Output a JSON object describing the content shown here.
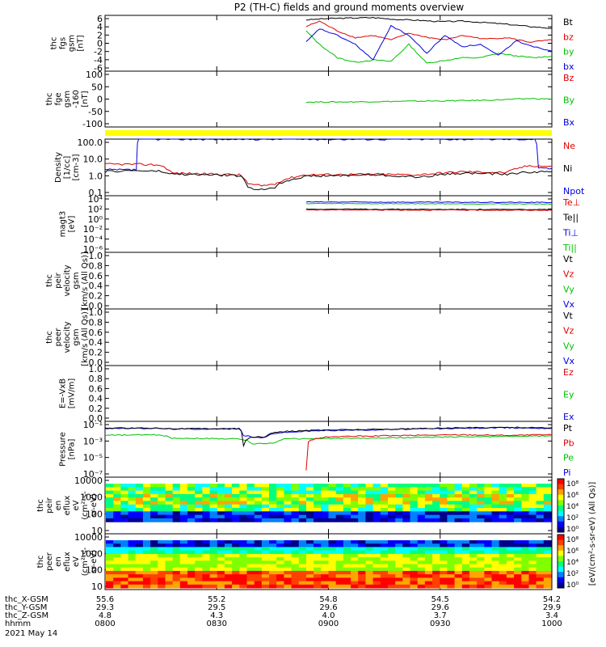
{
  "title": "P2 (TH-C) fields and ground moments overview",
  "colors": {
    "black": "#000000",
    "red": "#e00000",
    "green": "#00c000",
    "blue": "#0000e0",
    "yellow": "#ffff00",
    "frame": "#000000"
  },
  "chart_data": {
    "type": "line",
    "time_range": [
      "08:00",
      "10:00"
    ],
    "panels": [
      {
        "id": "fgs",
        "ylabel_lines": [
          "thc",
          "fgs",
          "gsm",
          "[nT]"
        ],
        "yticks": [
          "6",
          "4",
          "2",
          "0",
          "-2",
          "-4",
          "-6"
        ],
        "ylim": [
          -6,
          6.5
        ],
        "legend": [
          {
            "label": "Bt",
            "color": "#000000"
          },
          {
            "label": "bz",
            "color": "#e00000"
          },
          {
            "label": "by",
            "color": "#00c000"
          },
          {
            "label": "bx",
            "color": "#0000e0"
          }
        ],
        "series": [
          {
            "name": "Bt",
            "color": "#000000",
            "x": [
              0.45,
              0.5,
              0.55,
              0.6,
              0.65,
              0.7,
              0.75,
              0.8,
              0.85,
              0.9,
              0.95,
              1.0
            ],
            "y": [
              5.5,
              5.8,
              5.9,
              6.0,
              5.6,
              5.4,
              5.1,
              5.2,
              4.9,
              4.5,
              4.0,
              3.6
            ]
          },
          {
            "name": "bz",
            "color": "#e00000",
            "x": [
              0.45,
              0.48,
              0.52,
              0.56,
              0.6,
              0.64,
              0.68,
              0.72,
              0.76,
              0.8,
              0.85,
              0.9,
              0.95,
              1.0
            ],
            "y": [
              4.0,
              5.2,
              3.0,
              1.5,
              2.0,
              1.0,
              2.5,
              1.6,
              1.0,
              2.0,
              1.2,
              1.5,
              0.5,
              1.0
            ]
          },
          {
            "name": "by",
            "color": "#00c000",
            "x": [
              0.45,
              0.48,
              0.52,
              0.56,
              0.6,
              0.64,
              0.68,
              0.72,
              0.76,
              0.8,
              0.84,
              0.88,
              0.92,
              0.96,
              1.0
            ],
            "y": [
              3.0,
              0.0,
              -3.0,
              -4.0,
              -3.5,
              -3.8,
              0.0,
              -4.2,
              -3.6,
              -3.0,
              -3.0,
              -2.0,
              -2.6,
              -3.0,
              -2.6
            ]
          },
          {
            "name": "bx",
            "color": "#0000e0",
            "x": [
              0.45,
              0.48,
              0.52,
              0.56,
              0.6,
              0.64,
              0.68,
              0.72,
              0.76,
              0.8,
              0.84,
              0.88,
              0.92,
              0.96,
              1.0
            ],
            "y": [
              0.5,
              3.5,
              2.0,
              0.0,
              -3.5,
              4.2,
              2.0,
              -2.0,
              2.0,
              -0.5,
              0.0,
              -2.5,
              0.8,
              -0.5,
              -1.5
            ]
          }
        ]
      },
      {
        "id": "fge",
        "ylabel_lines": [
          "thc",
          "fge",
          "gsm",
          "-160",
          "[nT]"
        ],
        "yticks": [
          "100",
          "50",
          "0",
          "-50",
          "-100"
        ],
        "ylim": [
          -130,
          110
        ],
        "legend": [
          {
            "label": "Bz",
            "color": "#e00000"
          },
          {
            "label": "By",
            "color": "#00c000"
          },
          {
            "label": "Bx",
            "color": "#0000e0"
          }
        ],
        "series": [
          {
            "name": "By",
            "color": "#00c000",
            "x": [
              0.45,
              0.55,
              0.65,
              0.75,
              0.85,
              0.9,
              0.95,
              1.0
            ],
            "y": [
              -23,
              -22,
              -20,
              -18,
              -15,
              -12,
              -8,
              -10
            ]
          }
        ]
      },
      {
        "id": "density",
        "ylabel_lines": [
          "Density",
          "[1/cc]",
          "[cm-3]"
        ],
        "yticks": [
          "100.0",
          "10.0",
          "1.0",
          "0.1"
        ],
        "log": true,
        "ylim": [
          0.03,
          300
        ],
        "legend": [
          {
            "label": "Ne",
            "color": "#e00000"
          },
          {
            "label": "Ni",
            "color": "#000000"
          },
          {
            "label": "Npot",
            "color": "#0000e0"
          }
        ],
        "series": [
          {
            "name": "Npot",
            "color": "#0000e0",
            "x": [
              0,
              0.07,
              0.075,
              0.08,
              0.96,
              0.962,
              0.97,
              1.0
            ],
            "y": [
              2.0,
              2.0,
              300,
              300,
              300,
              300,
              2.5,
              2.5
            ]
          },
          {
            "name": "Ne",
            "color": "#e00000",
            "x": [
              0,
              0.06,
              0.12,
              0.15,
              0.3,
              0.32,
              0.35,
              0.38,
              0.45,
              0.6,
              0.7,
              0.8,
              0.9,
              0.95,
              1.0
            ],
            "y": [
              5.0,
              5.0,
              4.5,
              1.2,
              0.9,
              0.2,
              0.15,
              0.2,
              0.9,
              1.0,
              0.9,
              1.5,
              1.3,
              4.0,
              3.5
            ]
          },
          {
            "name": "Ni",
            "color": "#000000",
            "x": [
              0,
              0.06,
              0.12,
              0.15,
              0.3,
              0.32,
              0.35,
              0.38,
              0.45,
              0.6,
              0.7,
              0.8,
              0.9,
              0.95,
              1.0
            ],
            "y": [
              1.5,
              1.8,
              1.6,
              1.0,
              0.8,
              0.1,
              0.08,
              0.12,
              0.7,
              0.9,
              0.6,
              1.2,
              1.0,
              1.4,
              1.5
            ]
          }
        ]
      },
      {
        "id": "temperature",
        "ylabel_lines": [
          "magt3",
          "[eV]"
        ],
        "yticks": [
          "10⁴",
          "10²",
          "10⁰",
          "10⁻²",
          "10⁻⁴",
          "10⁻⁶"
        ],
        "log": true,
        "ylim": [
          1e-07,
          10000.0
        ],
        "legend": [
          {
            "label": "Te⊥",
            "color": "#e00000"
          },
          {
            "label": "Te||",
            "color": "#000000"
          },
          {
            "label": "Ti⊥",
            "color": "#0000e0"
          },
          {
            "label": "Ti||",
            "color": "#00c000"
          }
        ],
        "series": [
          {
            "name": "Ti⊥",
            "color": "#0000e0",
            "x": [
              0.45,
              1.0
            ],
            "y": [
              600,
              500
            ]
          },
          {
            "name": "Ti||",
            "color": "#00c000",
            "x": [
              0.45,
              1.0
            ],
            "y": [
              300,
              250
            ]
          },
          {
            "name": "Te||",
            "color": "#000000",
            "x": [
              0.45,
              1.0
            ],
            "y": [
              25,
              20
            ]
          },
          {
            "name": "Te⊥",
            "color": "#e00000",
            "x": [
              0.45,
              1.0
            ],
            "y": [
              18,
              15
            ]
          }
        ]
      },
      {
        "id": "peir_velocity",
        "ylabel_lines": [
          "thc",
          "peir",
          "velocity",
          "gsm",
          "[km/s (All Qs)]"
        ],
        "yticks": [
          "1.0",
          "0.8",
          "0.6",
          "0.4",
          "0.2",
          "0.0"
        ],
        "ylim": [
          0,
          1
        ],
        "legend": [
          {
            "label": "Vt",
            "color": "#000000"
          },
          {
            "label": "Vz",
            "color": "#e00000"
          },
          {
            "label": "Vy",
            "color": "#00c000"
          },
          {
            "label": "Vx",
            "color": "#0000e0"
          }
        ],
        "series": []
      },
      {
        "id": "peer_velocity",
        "ylabel_lines": [
          "thc",
          "peer",
          "velocity",
          "gsm",
          "[km/s (All Qs)]"
        ],
        "yticks": [
          "1.0",
          "0.8",
          "0.6",
          "0.4",
          "0.2",
          "0.0"
        ],
        "ylim": [
          0,
          1
        ],
        "legend": [
          {
            "label": "Vt",
            "color": "#000000"
          },
          {
            "label": "Vz",
            "color": "#e00000"
          },
          {
            "label": "Vy",
            "color": "#00c000"
          },
          {
            "label": "Vx",
            "color": "#0000e0"
          }
        ],
        "series": []
      },
      {
        "id": "efield",
        "ylabel_lines": [
          "E=-VxB",
          "[mV/m]"
        ],
        "yticks": [
          "1.0",
          "0.8",
          "0.6",
          "0.4",
          "0.2",
          "0.0"
        ],
        "ylim": [
          0,
          1
        ],
        "legend": [
          {
            "label": "Ez",
            "color": "#e00000"
          },
          {
            "label": "Ey",
            "color": "#00c000"
          },
          {
            "label": "Ex",
            "color": "#0000e0"
          }
        ],
        "series": []
      },
      {
        "id": "pressure",
        "ylabel_lines": [
          "Pressure",
          "[nPa]"
        ],
        "yticks": [
          "10⁻¹",
          "10⁻³",
          "10⁻⁵",
          "10⁻⁷"
        ],
        "log": true,
        "ylim": [
          1e-08,
          1
        ],
        "legend": [
          {
            "label": "Pt",
            "color": "#000000"
          },
          {
            "label": "Pb",
            "color": "#e00000"
          },
          {
            "label": "Pe",
            "color": "#00c000"
          },
          {
            "label": "Pi",
            "color": "#0000e0"
          }
        ],
        "series": [
          {
            "name": "Pe",
            "color": "#00c000",
            "x": [
              0,
              0.12,
              0.15,
              0.3,
              0.33,
              0.38,
              0.4,
              0.6,
              0.8,
              1.0
            ],
            "y": [
              0.01,
              0.012,
              0.004,
              0.003,
              0.0006,
              0.0008,
              0.003,
              0.004,
              0.006,
              0.008
            ]
          },
          {
            "name": "Pb",
            "color": "#e00000",
            "x": [
              0.45,
              0.46,
              0.5,
              0.6,
              0.7,
              0.8,
              0.9,
              1.0
            ],
            "y": [
              1e-07,
              0.002,
              0.006,
              0.008,
              0.01,
              0.012,
              0.01,
              0.012
            ]
          },
          {
            "name": "Pi",
            "color": "#0000e0",
            "x": [
              0,
              0.12,
              0.15,
              0.3,
              0.31,
              0.33,
              0.36,
              0.38,
              0.5,
              0.6,
              0.7,
              0.8,
              0.9,
              1.0
            ],
            "y": [
              0.1,
              0.1,
              0.08,
              0.08,
              0.01,
              0.005,
              0.005,
              0.02,
              0.05,
              0.06,
              0.08,
              0.1,
              0.12,
              0.1
            ]
          },
          {
            "name": "Pt",
            "color": "#000000",
            "x": [
              0,
              0.12,
              0.15,
              0.3,
              0.31,
              0.33,
              0.36,
              0.38,
              0.5,
              0.6,
              0.7,
              0.8,
              0.9,
              1.0
            ],
            "y": [
              0.11,
              0.11,
              0.09,
              0.09,
              0.0003,
              0.006,
              0.006,
              0.03,
              0.06,
              0.07,
              0.09,
              0.12,
              0.14,
              0.12
            ]
          }
        ]
      },
      {
        "id": "peir_spectrogram",
        "type": "heatmap",
        "ylabel_lines": [
          "thc",
          "peir",
          "en",
          "eflux",
          "eV",
          "(cm²-s-",
          "sr-eV)"
        ],
        "yticks": [
          "10000",
          "1000",
          "100",
          "10"
        ]
      },
      {
        "id": "peer_spectrogram",
        "type": "heatmap",
        "ylabel_lines": [
          "thc",
          "peer",
          "en",
          "eflux",
          "eV",
          "(cm²-s-",
          "sr-eV)"
        ],
        "yticks": [
          "10000",
          "1000",
          "100",
          "10"
        ]
      }
    ],
    "colorbar": {
      "label": "[eV/(cm²-s-sr-eV) (All Qs)]",
      "ticks_top": [
        "10⁸",
        "10⁶",
        "10⁴",
        "10²",
        "10⁰"
      ],
      "ticks_bottom": [
        "10⁸",
        "10⁶",
        "10⁴",
        "10²",
        "10⁰"
      ]
    },
    "x_axis": {
      "rows": [
        {
          "label": "thc_X-GSM",
          "values": [
            "55.6",
            "55.2",
            "54.8",
            "54.5",
            "54.2"
          ]
        },
        {
          "label": "thc_Y-GSM",
          "values": [
            "29.3",
            "29.5",
            "29.6",
            "29.6",
            "29.9"
          ]
        },
        {
          "label": "thc_Z-GSM",
          "values": [
            "4.8",
            "4.3",
            "4.0",
            "3.7",
            "3.4"
          ]
        },
        {
          "label": "hhmm",
          "values": [
            "0800",
            "0830",
            "0900",
            "0930",
            "1000"
          ]
        }
      ],
      "date": "2021 May 14"
    }
  }
}
